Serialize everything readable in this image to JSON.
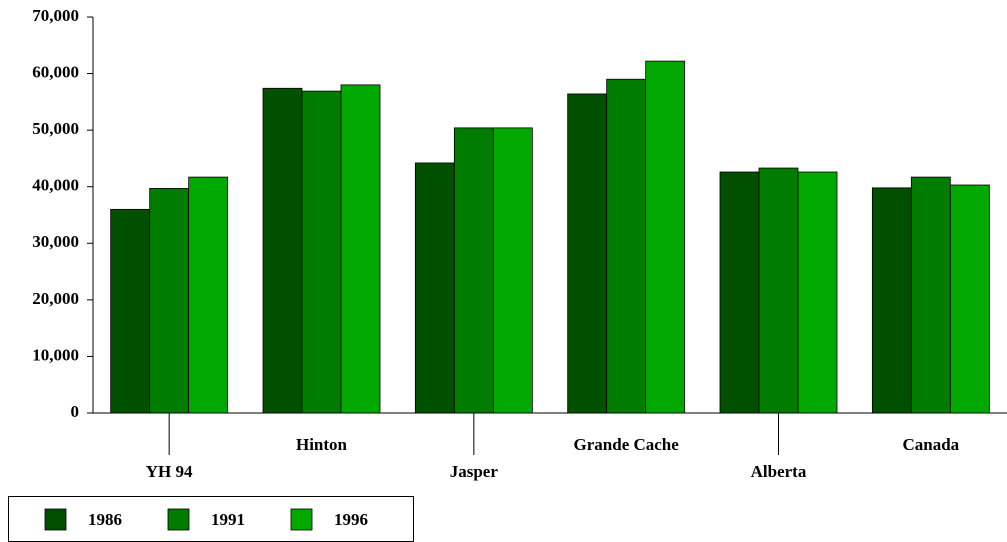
{
  "chart_data": {
    "type": "bar",
    "categories": [
      "YH 94",
      "Hinton",
      "Jasper",
      "Grande Cache",
      "Alberta",
      "Canada"
    ],
    "series": [
      {
        "name": "1986",
        "color": "#005000",
        "values": [
          36000,
          57400,
          44200,
          56400,
          42600,
          39800
        ]
      },
      {
        "name": "1991",
        "color": "#007d00",
        "values": [
          39700,
          56900,
          50400,
          59000,
          43300,
          41700
        ]
      },
      {
        "name": "1996",
        "color": "#00a800",
        "values": [
          41700,
          58000,
          50400,
          62200,
          42600,
          40300
        ]
      }
    ],
    "ylim": [
      0,
      70000
    ],
    "yticks": [
      0,
      {
        "value": 10000,
        "label": "10,000"
      },
      {
        "value": 20000,
        "label": "20,000"
      },
      {
        "value": 30000,
        "label": "30,000"
      },
      {
        "value": 40000,
        "label": "40,000"
      },
      {
        "value": 50000,
        "label": "50,000"
      },
      {
        "value": 60000,
        "label": "60,000"
      },
      {
        "value": 70000,
        "label": "70,000"
      }
    ],
    "grid": false,
    "legend": "bottom-left"
  }
}
